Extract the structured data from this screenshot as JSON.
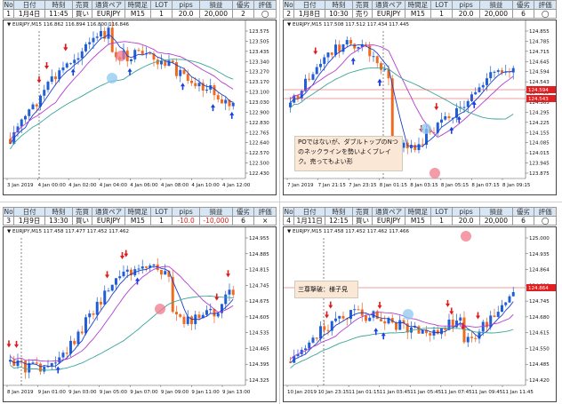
{
  "headers": [
    "No",
    "日付",
    "時刻",
    "売買",
    "通貨ペア",
    "時間足",
    "LOT",
    "pips",
    "損益",
    "優劣",
    "評価"
  ],
  "trades": [
    {
      "row": [
        "1",
        "1月4日",
        "11:45",
        "買い",
        "EURJPY",
        "M15",
        "1",
        "20.0",
        "20,000",
        "2",
        "◯"
      ],
      "negative": [],
      "info": "EURJPY,M15  116.862 116.894 116.800 116.846",
      "ylabels": [
        "123.575",
        "123.505",
        "123.435",
        "123.340",
        "123.270",
        "123.170",
        "123.100",
        "123.030",
        "122.900",
        "122.830",
        "122.765",
        "122.640",
        "122.570",
        "122.500",
        "122.430"
      ],
      "xlabels": [
        "3 Jan 2019",
        "4 Jan 00:00",
        "4 Jan 02:00",
        "4 Jan 04:00",
        "4 Jan 06:00",
        "4 Jan 08:00",
        "4 Jan 10:00",
        "4 Jan 12:00"
      ],
      "note": ""
    },
    {
      "row": [
        "2",
        "1月8日",
        "10:30",
        "売り",
        "EURJPY",
        "M15",
        "1",
        "20.0",
        "20,000",
        "6",
        "◯"
      ],
      "negative": [],
      "info": "EURJPY,M15  117.508 117.512 117.434 117.445",
      "ylabels": [
        "124.855",
        "124.785",
        "124.715",
        "124.645",
        "124.594",
        "124.543",
        "124.435",
        "124.365",
        "124.295",
        "124.225",
        "124.155",
        "124.085",
        "124.015",
        "123.945",
        "123.875"
      ],
      "xlabels": [
        "7 Jan 2019",
        "7 Jan 21:15",
        "7 Jan 23:15",
        "8 Jan 01:15",
        "8 Jan 03:15",
        "8 Jan 05:15",
        "8 Jan 07:15",
        "8 Jan 09:15"
      ],
      "price_tags": [
        "124.594",
        "124.543"
      ],
      "note": "POではないが、ダブルトップのNつのネックラインを勢いよくブレイク。売ってもよい形"
    },
    {
      "row": [
        "3",
        "1月9日",
        "13:30",
        "買い",
        "EURJPY",
        "M15",
        "1",
        "-10.0",
        "-10,000",
        "6",
        "×"
      ],
      "negative": [
        7,
        8
      ],
      "info": "EURJPY,M15  117.458 117.477 117.452 117.462",
      "ylabels": [
        "124.955",
        "124.885",
        "124.815",
        "124.745",
        "124.675",
        "124.605",
        "124.535",
        "124.465",
        "124.395",
        "124.325"
      ],
      "xlabels": [
        "8 Jan 2019",
        "9 Jan 01:00",
        "9 Jan 03:00",
        "9 Jan 05:00",
        "9 Jan 07:00",
        "9 Jan 09:00",
        "9 Jan 11:00",
        "9 Jan 13:00"
      ],
      "note": ""
    },
    {
      "row": [
        "4",
        "1月11日",
        "12:15",
        "買い",
        "EURJPY",
        "M15",
        "1",
        "20.0",
        "20,000",
        "6",
        "◯"
      ],
      "negative": [],
      "info": "EURJPY,M15  117.458 117.452 117.462 117.466",
      "ylabels": [
        "125.000",
        "124.935",
        "124.864",
        "124.810",
        "124.745",
        "124.680",
        "124.615",
        "124.550",
        "124.485",
        "124.420"
      ],
      "xlabels": [
        "10 Jan 2019",
        "10 Jan 23:15",
        "11 Jan 01:15",
        "11 Jan 03:45",
        "11 Jan 05:45",
        "11 Jan 07:45",
        "11 Jan 09:45",
        "11 Jan 11:45"
      ],
      "price_tags": [
        "124.864"
      ],
      "note": "三尊撃破：様子見"
    }
  ]
}
